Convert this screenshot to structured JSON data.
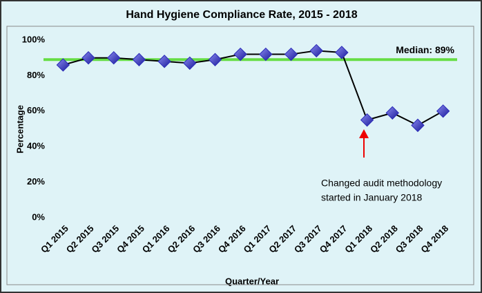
{
  "chart_data": {
    "type": "line",
    "title": "Hand Hygiene Compliance Rate, 2015 - 2018",
    "x_label": "Quarter/Year",
    "y_label": "Percentage",
    "categories": [
      "Q1 2015",
      "Q2 2015",
      "Q3 2015",
      "Q4 2015",
      "Q1 2016",
      "Q2 2016",
      "Q3 2016",
      "Q4 2016",
      "Q1 2017",
      "Q2 2017",
      "Q3 2017",
      "Q4 2017",
      "Q1 2018",
      "Q2 2018",
      "Q3 2018",
      "Q4 2018"
    ],
    "series": [
      {
        "name": "Compliance Rate",
        "color": "#2a2ab8",
        "values": [
          86,
          90,
          90,
          89,
          88,
          87,
          89,
          92,
          92,
          92,
          94,
          93,
          55,
          59,
          52,
          60
        ]
      }
    ],
    "reference_line": {
      "label": "Median: 89%",
      "value": 89,
      "color": "#66dd44",
      "label_color": "#ee0000"
    },
    "annotation": [
      "Changed audit methodology",
      "started in January 2018"
    ],
    "ylim": [
      0,
      100
    ],
    "yticks": [
      {
        "value": 0,
        "label": "0%"
      },
      {
        "value": 20,
        "label": "20%"
      },
      {
        "value": 40,
        "label": "40%"
      },
      {
        "value": 60,
        "label": "60%"
      },
      {
        "value": 80,
        "label": "80%"
      },
      {
        "value": 100,
        "label": "100%"
      }
    ],
    "grid": false
  }
}
